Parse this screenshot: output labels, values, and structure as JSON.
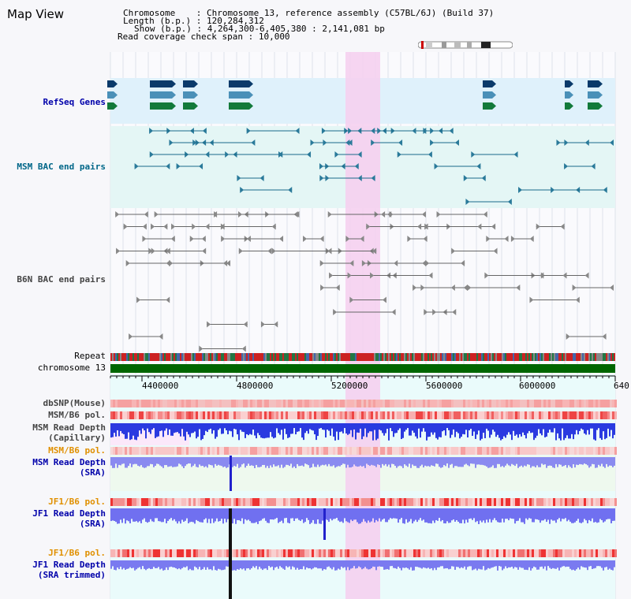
{
  "title": "Map View",
  "info": {
    "chromosome_label": "Chromosome",
    "chromosome_value": ": Chromosome 13, reference assembly (C57BL/6J) (Build 37)",
    "length_label": "Length (b.p.)",
    "length_value": ": 120,284,312",
    "show_label": "Show (b.p.)",
    "show_value": ": 4,264,300-6,405,380 : 2,141,081 bp",
    "coverage_label": "Read coverage check span",
    "coverage_value": ": 10,000"
  },
  "track_labels": {
    "refseq": "RefSeq Genes",
    "msm_bac": "MSM BAC end pairs",
    "b6n_bac": "B6N BAC end pairs",
    "repeat": "Repeat",
    "chromosome": "chromosome 13",
    "dbsnp": "dbSNP(Mouse)",
    "msm_b6_pol_1": "MSM/B6 pol.",
    "msm_depth_cap_1": "MSM Read Depth",
    "msm_depth_cap_2": "(Capillary)",
    "msm_b6_pol_2": "MSM/B6 pol.",
    "msm_depth_sra_1": "MSM Read Depth",
    "msm_depth_sra_2": "(SRA)",
    "jf1_b6_pol_1": "JF1/B6 pol.",
    "jf1_depth_sra_1": "JF1 Read Depth",
    "jf1_depth_sra_2": "(SRA)",
    "jf1_b6_pol_2": "JF1/B6 pol.",
    "jf1_depth_trim_1": "JF1 Read Depth",
    "jf1_depth_trim_2": "(SRA trimmed)"
  },
  "axis": {
    "ticks": [
      "4400000",
      "4800000",
      "5200000",
      "5600000",
      "6000000",
      "640"
    ]
  },
  "colors": {
    "refseq_label": "#0000aa",
    "msm_label": "#006688",
    "b6n_label": "#444444",
    "orange_label": "#e09000",
    "blue_label": "#0000aa",
    "highlight": "#f5d0f0",
    "chromosome_bar": "#006600"
  }
}
